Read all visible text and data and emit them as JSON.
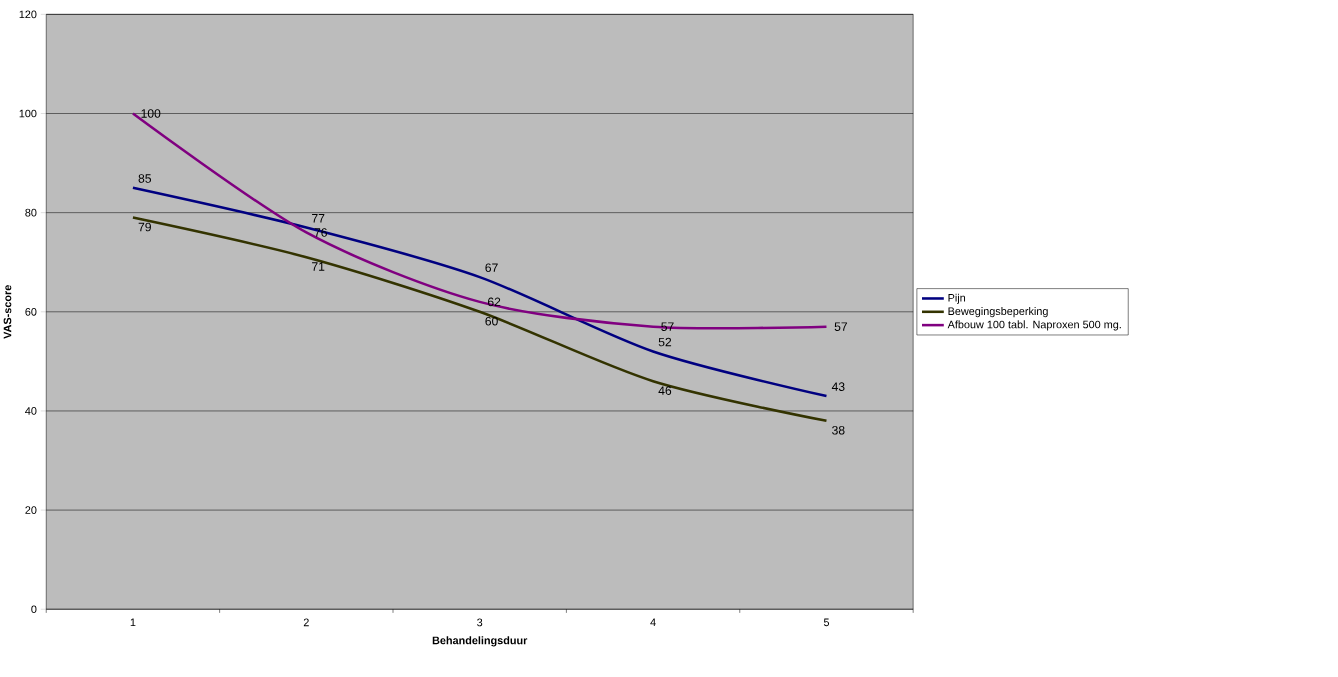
{
  "chart_data": {
    "type": "line",
    "xlabel": "Behandelingsduur",
    "ylabel": "VAS-score",
    "categories": [
      "1",
      "2",
      "3",
      "4",
      "5"
    ],
    "series": [
      {
        "name": "Pijn",
        "color": "#000080",
        "values": [
          85,
          77,
          67,
          52,
          43
        ]
      },
      {
        "name": "Bewegingsbeperking",
        "color": "#333300",
        "values": [
          79,
          71,
          60,
          46,
          38
        ]
      },
      {
        "name": "Afbouw 100 tabl. Naproxen 500 mg.",
        "color": "#800080",
        "values": [
          100,
          76,
          62,
          57,
          57
        ]
      }
    ],
    "ylim": [
      0,
      120
    ],
    "yticks": [
      0,
      20,
      40,
      60,
      80,
      100,
      120
    ],
    "grid": "y",
    "legend": "right",
    "data_labels": true,
    "marker": "none",
    "line_style": "solid"
  }
}
